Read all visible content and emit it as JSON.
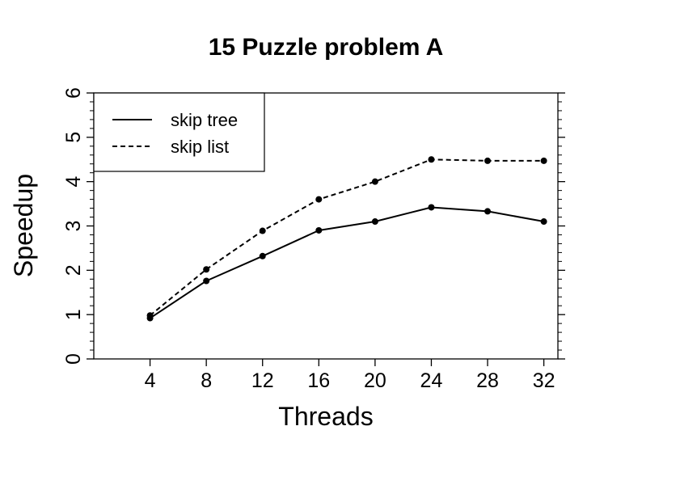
{
  "chart_data": {
    "type": "line",
    "title": "15 Puzzle problem A",
    "xlabel": "Threads",
    "ylabel": "Speedup",
    "x": [
      4,
      8,
      12,
      16,
      20,
      24,
      28,
      32
    ],
    "x_ticks": [
      "4",
      "8",
      "12",
      "16",
      "20",
      "24",
      "28",
      "32"
    ],
    "y_ticks": [
      "0",
      "1",
      "2",
      "3",
      "4",
      "5",
      "6"
    ],
    "xlim": [
      0,
      33
    ],
    "ylim": [
      0,
      6
    ],
    "grid": false,
    "legend_position": "top-left",
    "series": [
      {
        "name": "skip tree",
        "style": "solid",
        "values": [
          0.92,
          1.76,
          2.32,
          2.9,
          3.1,
          3.42,
          3.33,
          3.1
        ]
      },
      {
        "name": "skip list",
        "style": "dashed",
        "values": [
          0.98,
          2.02,
          2.89,
          3.6,
          4.0,
          4.5,
          4.47,
          4.47
        ]
      }
    ]
  }
}
